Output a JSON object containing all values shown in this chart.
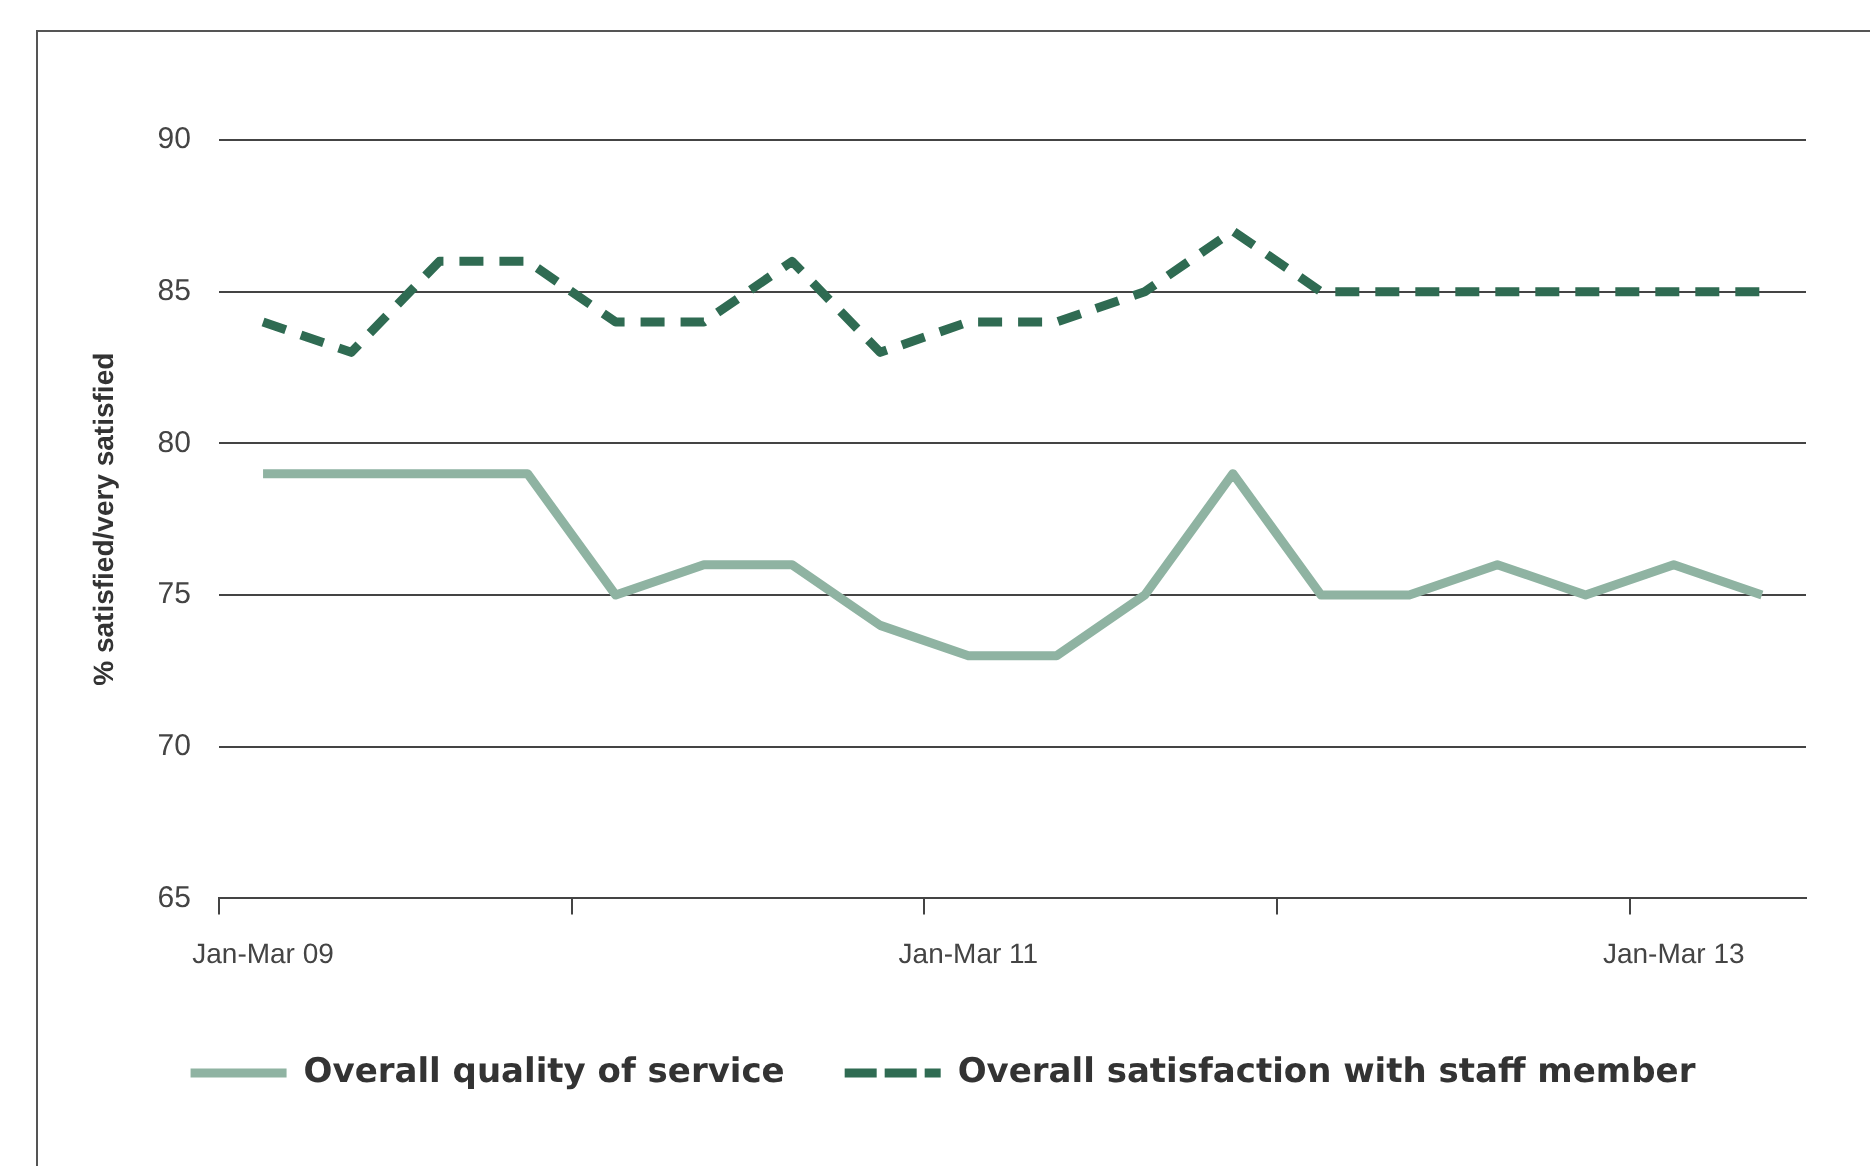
{
  "chart_data": {
    "type": "line",
    "categories": [
      "Jan-Mar 09",
      null,
      null,
      null,
      null,
      null,
      null,
      null,
      "Jan-Mar 11",
      null,
      null,
      null,
      null,
      null,
      null,
      null,
      "Jan-Mar 13",
      null
    ],
    "series": [
      {
        "name": "Overall quality of service",
        "color": "#8fb3a2",
        "line_style": "solid",
        "values": [
          79,
          79,
          79,
          79,
          75,
          76,
          76,
          74,
          73,
          73,
          75,
          79,
          75,
          75,
          76,
          75,
          76,
          75
        ]
      },
      {
        "name": "Overall satisfaction with staff member",
        "color": "#2f6b52",
        "line_style": "dashed",
        "values": [
          84,
          83,
          86,
          86,
          84,
          84,
          86,
          83,
          84,
          84,
          85,
          87,
          85,
          85,
          85,
          85,
          85,
          85
        ]
      }
    ],
    "ylabel": "% satisfied/very satisfied",
    "ylim": [
      65,
      90
    ],
    "yticks": [
      65,
      70,
      75,
      80,
      85,
      90
    ],
    "grid": "y",
    "legend": "bottom",
    "marker": "none"
  }
}
